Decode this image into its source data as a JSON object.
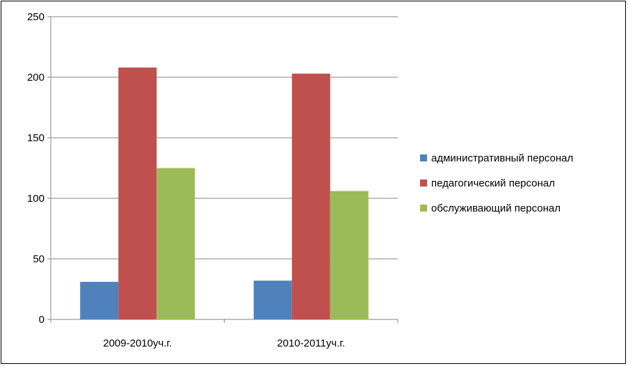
{
  "chart_data": {
    "type": "bar",
    "categories": [
      "2009-2010уч.г.",
      "2010-2011уч.г."
    ],
    "series": [
      {
        "name": "административный персонал",
        "values": [
          31,
          32
        ],
        "color": "#4F81BD"
      },
      {
        "name": "педагогический персонал",
        "values": [
          208,
          203
        ],
        "color": "#C0504D"
      },
      {
        "name": "обслуживающий персонал",
        "values": [
          125,
          106
        ],
        "color": "#9BBB59"
      }
    ],
    "title": "",
    "xlabel": "",
    "ylabel": "",
    "ylim": [
      0,
      250
    ],
    "yticks": [
      0,
      50,
      100,
      150,
      200,
      250
    ],
    "grid": true,
    "legend": "right"
  }
}
